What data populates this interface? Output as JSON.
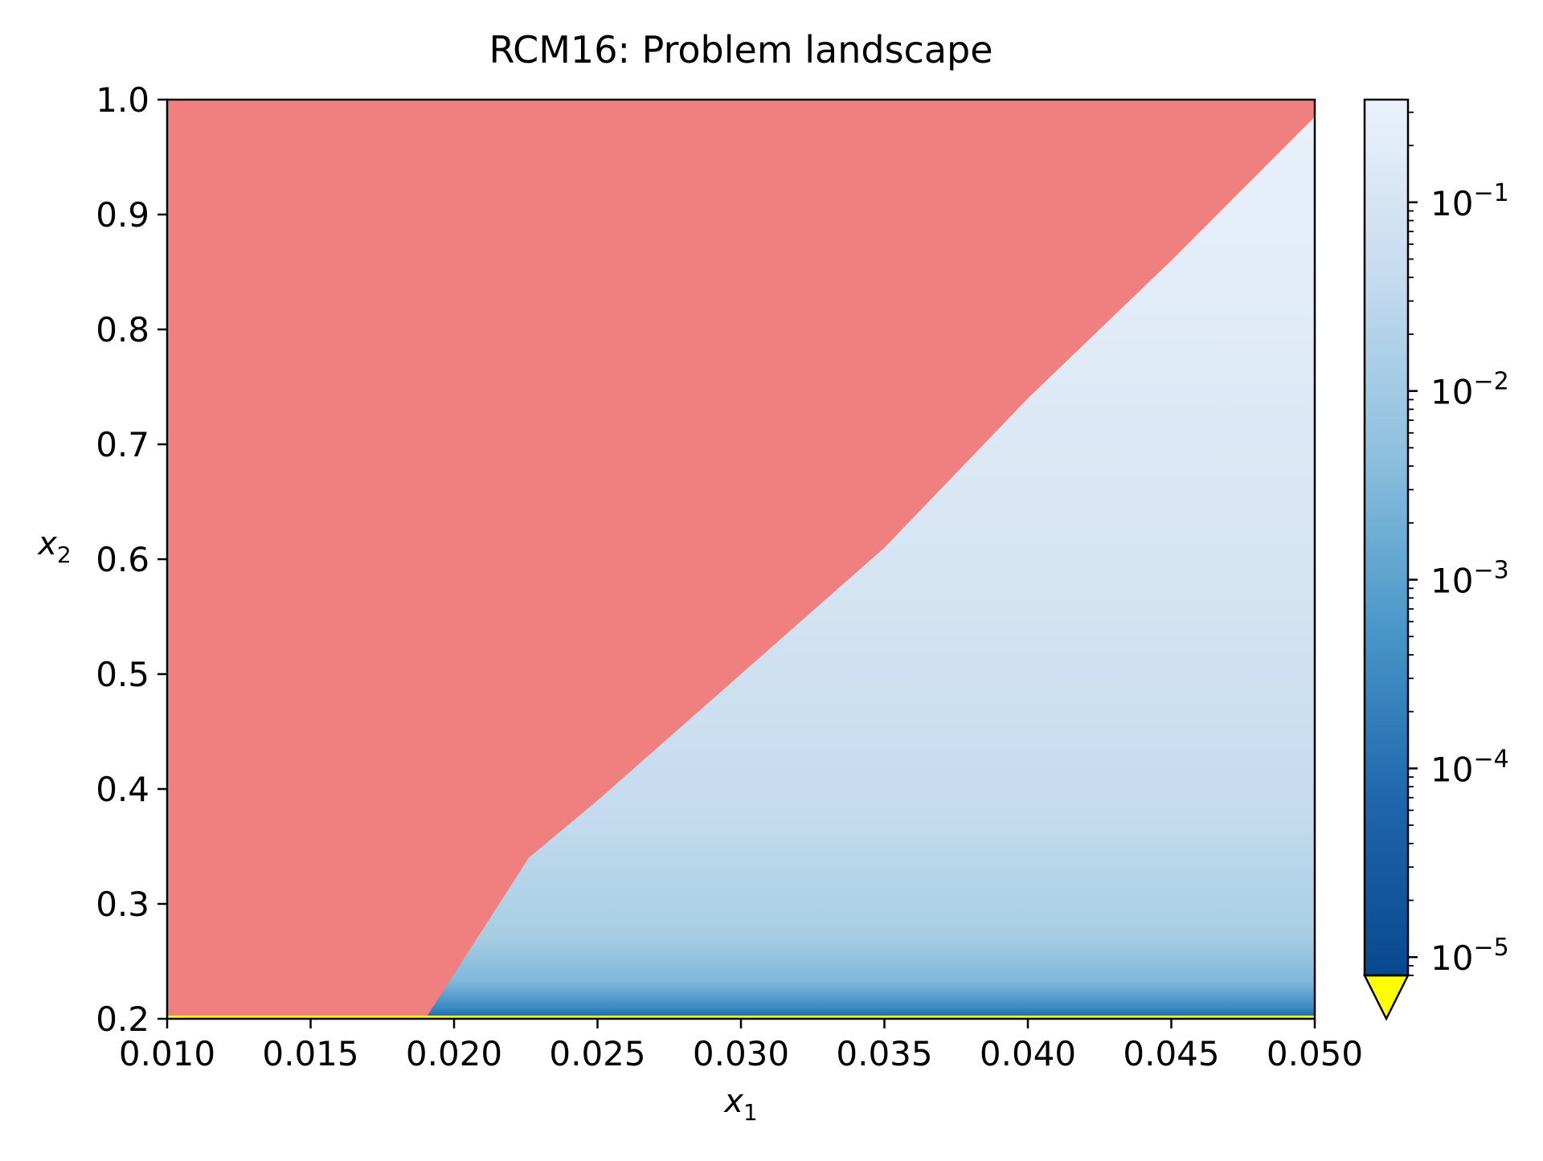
{
  "chart_data": {
    "type": "heatmap",
    "title": "RCM16: Problem landscape",
    "xlabel": "x",
    "xlabel_sub": "1",
    "ylabel": "x",
    "ylabel_sub": "2",
    "xlim": [
      0.01,
      0.05
    ],
    "ylim": [
      0.2,
      1.0
    ],
    "x_ticks": [
      0.01,
      0.015,
      0.02,
      0.025,
      0.03,
      0.035,
      0.04,
      0.045,
      0.05
    ],
    "x_tick_labels": [
      "0.010",
      "0.015",
      "0.020",
      "0.025",
      "0.030",
      "0.035",
      "0.040",
      "0.045",
      "0.050"
    ],
    "y_ticks": [
      0.2,
      0.3,
      0.4,
      0.5,
      0.6,
      0.7,
      0.8,
      0.9,
      1.0
    ],
    "y_tick_labels": [
      "0.2",
      "0.3",
      "0.4",
      "0.5",
      "0.6",
      "0.7",
      "0.8",
      "0.9",
      "1.0"
    ],
    "infeasible_region": {
      "color": "#f08080",
      "boundary": [
        {
          "x1": 0.019,
          "x2": 0.2
        },
        {
          "x1": 0.0226,
          "x2": 0.34
        },
        {
          "x1": 0.025,
          "x2": 0.39
        },
        {
          "x1": 0.03,
          "x2": 0.5
        },
        {
          "x1": 0.035,
          "x2": 0.61
        },
        {
          "x1": 0.04,
          "x2": 0.74
        },
        {
          "x1": 0.045,
          "x2": 0.86
        },
        {
          "x1": 0.05,
          "x2": 0.985
        }
      ]
    },
    "colorbar": {
      "scale": "log",
      "colormap": "Blues_r",
      "range": [
        8e-06,
        0.35
      ],
      "extend": "min",
      "under_color": "#ffff00",
      "ticks": [
        1e-05,
        0.0001,
        0.001,
        0.01,
        0.1
      ],
      "tick_labels": [
        {
          "base": "10",
          "exp": "−5"
        },
        {
          "base": "10",
          "exp": "−4"
        },
        {
          "base": "10",
          "exp": "−3"
        },
        {
          "base": "10",
          "exp": "−2"
        },
        {
          "base": "10",
          "exp": "−1"
        }
      ]
    },
    "colors": {
      "dark_blue": "#08488e",
      "mid_blue": "#3a8ac4",
      "light_blue": "#a8cee4",
      "pale_blue": "#c8dcef",
      "near_white": "#e8f1fa",
      "infeasible": "#f08080",
      "under": "#ffff00"
    }
  }
}
